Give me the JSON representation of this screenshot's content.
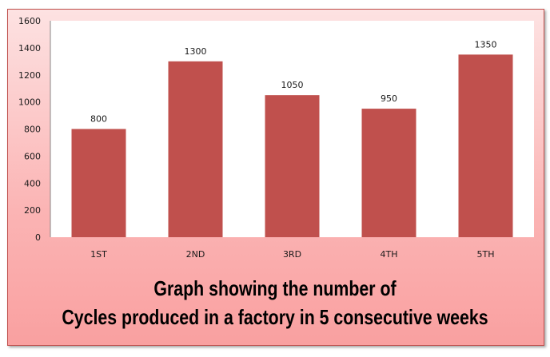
{
  "chart_data": {
    "type": "bar",
    "title": [
      "Graph showing the number of",
      "Cycles produced in a factory in 5 consecutive weeks"
    ],
    "categories": [
      "1ST",
      "2ND",
      "3RD",
      "4TH",
      "5TH"
    ],
    "values": [
      800,
      1300,
      1050,
      950,
      1350
    ],
    "data_labels": [
      "800",
      "1300",
      "1050",
      "950",
      "1350"
    ],
    "xlabel": "",
    "ylabel": "",
    "ylim": [
      0,
      1600
    ],
    "yticks": [
      0,
      200,
      400,
      600,
      800,
      1000,
      1200,
      1400,
      1600
    ],
    "grid": false,
    "legend": "none",
    "colors": {
      "bar": "#c0504d",
      "background_top": "#fde2e2",
      "background_bottom": "#f9a0a0",
      "plot_area": "#ffffff"
    }
  }
}
